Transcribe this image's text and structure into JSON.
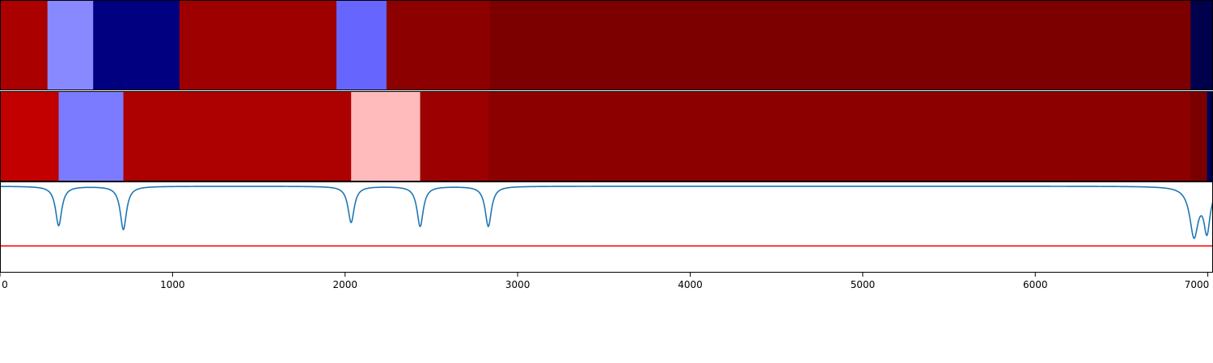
{
  "chart_data": [
    {
      "type": "heatmap",
      "panel": "top-band",
      "xlim": [
        0,
        7030
      ],
      "colormap": "seismic",
      "segments": [
        {
          "x0": 0,
          "x1": 275,
          "color": "#aa0000"
        },
        {
          "x0": 275,
          "x1": 540,
          "color": "#8888ff"
        },
        {
          "x0": 540,
          "x1": 1040,
          "color": "#000080"
        },
        {
          "x0": 1040,
          "x1": 1950,
          "color": "#9e0000"
        },
        {
          "x0": 1950,
          "x1": 2240,
          "color": "#6666ff"
        },
        {
          "x0": 2240,
          "x1": 2840,
          "color": "#8d0000"
        },
        {
          "x0": 2840,
          "x1": 6900,
          "color": "#7c0000"
        },
        {
          "x0": 6900,
          "x1": 7030,
          "color": "#00004c"
        }
      ]
    },
    {
      "type": "heatmap",
      "panel": "middle-band",
      "xlim": [
        0,
        7030
      ],
      "colormap": "seismic",
      "segments": [
        {
          "x0": 0,
          "x1": 340,
          "color": "#c20000"
        },
        {
          "x0": 340,
          "x1": 715,
          "color": "#7b7bff"
        },
        {
          "x0": 715,
          "x1": 2035,
          "color": "#ad0000"
        },
        {
          "x0": 2035,
          "x1": 2435,
          "color": "#ffbbbb"
        },
        {
          "x0": 2435,
          "x1": 2830,
          "color": "#9c0000"
        },
        {
          "x0": 2830,
          "x1": 6900,
          "color": "#8d0000"
        },
        {
          "x0": 6900,
          "x1": 6995,
          "color": "#7a0000"
        },
        {
          "x0": 6995,
          "x1": 7030,
          "color": "#000050"
        }
      ]
    },
    {
      "type": "line",
      "panel": "bottom-signal",
      "xlim": [
        0,
        7030
      ],
      "ylim": [
        -1.1,
        0.05
      ],
      "baseline": 0,
      "threshold": -0.76,
      "line_color": "#1f77b4",
      "threshold_color": "#ff0000",
      "dips": [
        {
          "x": 340,
          "depth": -0.5,
          "width": 22
        },
        {
          "x": 715,
          "depth": -0.55,
          "width": 22
        },
        {
          "x": 2035,
          "depth": -0.46,
          "width": 22
        },
        {
          "x": 2435,
          "depth": -0.51,
          "width": 22
        },
        {
          "x": 2830,
          "depth": -0.51,
          "width": 22
        },
        {
          "x": 6920,
          "depth": -0.62,
          "width": 30
        },
        {
          "x": 6995,
          "depth": -0.54,
          "width": 22
        }
      ],
      "xticks": [
        0,
        1000,
        2000,
        3000,
        4000,
        5000,
        6000,
        7000
      ],
      "xticklabels": [
        "0",
        "1000",
        "2000",
        "3000",
        "4000",
        "5000",
        "6000",
        "7000"
      ]
    }
  ]
}
